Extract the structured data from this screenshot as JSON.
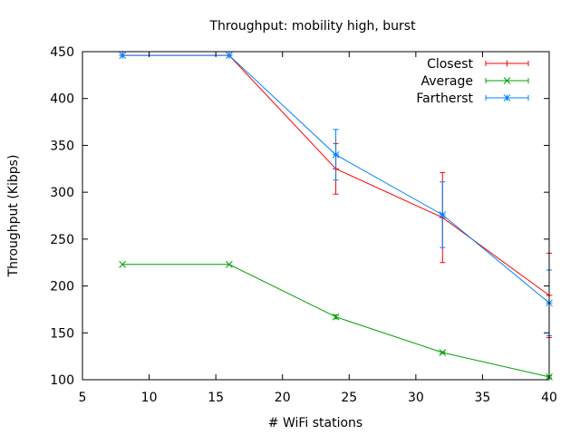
{
  "chart_data": {
    "type": "line",
    "title": "Throughput: mobility high, burst",
    "xlabel": "# WiFi stations",
    "ylabel": "Throughput (Kibps)",
    "xlim": [
      5,
      40
    ],
    "ylim": [
      100,
      450
    ],
    "xticks": [
      5,
      10,
      15,
      20,
      25,
      30,
      35,
      40
    ],
    "yticks": [
      100,
      150,
      200,
      250,
      300,
      350,
      400,
      450
    ],
    "grid": false,
    "legend_position": "top-right",
    "series": [
      {
        "name": "Closest",
        "color": "#ff0000",
        "marker": "plus",
        "x": [
          8,
          16,
          24,
          32,
          40
        ],
        "y": [
          446,
          446,
          325,
          273,
          190
        ],
        "err": [
          0,
          0,
          27,
          48,
          45
        ]
      },
      {
        "name": "Average",
        "color": "#00a000",
        "marker": "cross",
        "x": [
          8,
          16,
          24,
          32,
          40
        ],
        "y": [
          223,
          223,
          167,
          129,
          103
        ],
        "err": [
          0,
          0,
          2,
          1,
          1
        ]
      },
      {
        "name": "Fartherst",
        "color": "#0080ff",
        "marker": "star",
        "x": [
          8,
          16,
          24,
          32,
          40
        ],
        "y": [
          446,
          446,
          340,
          276,
          182
        ],
        "err": [
          0,
          0,
          27,
          35,
          35
        ]
      }
    ]
  }
}
